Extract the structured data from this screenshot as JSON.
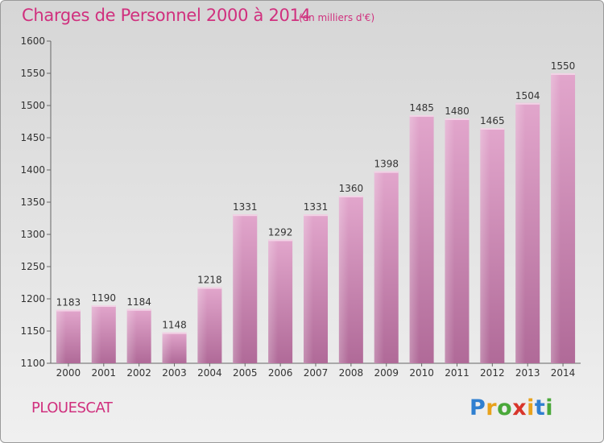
{
  "title": "Charges de Personnel 2000 à 2014",
  "subtitle": "(en milliers d'€)",
  "commune": "PLOUESCAT",
  "logo": {
    "p": "P",
    "r": "r",
    "o": "o",
    "x": "x",
    "i1": "i",
    "t": "t",
    "i2": "i"
  },
  "colors": {
    "bar_top": "#e2a6cc",
    "bar_bottom": "#b06a98",
    "title": "#d0307e"
  },
  "chart_data": {
    "type": "bar",
    "categories": [
      "2000",
      "2001",
      "2002",
      "2003",
      "2004",
      "2005",
      "2006",
      "2007",
      "2008",
      "2009",
      "2010",
      "2011",
      "2012",
      "2013",
      "2014"
    ],
    "values": [
      1183,
      1190,
      1184,
      1148,
      1218,
      1331,
      1292,
      1331,
      1360,
      1398,
      1485,
      1480,
      1465,
      1504,
      1550
    ],
    "ylim": [
      1100,
      1600
    ],
    "yticks": [
      1100,
      1150,
      1200,
      1250,
      1300,
      1350,
      1400,
      1450,
      1500,
      1550,
      1600
    ],
    "title": "Charges de Personnel 2000 à 2014",
    "xlabel": "",
    "ylabel": "",
    "grid": false
  }
}
